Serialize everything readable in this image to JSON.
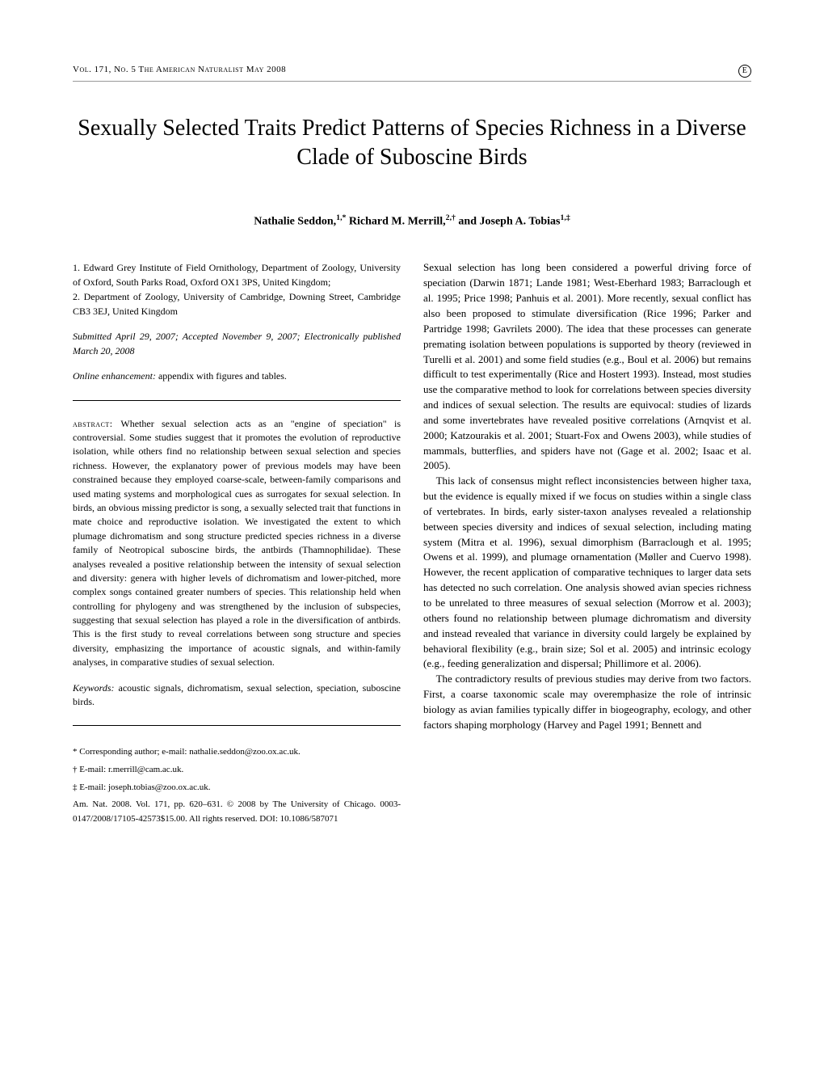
{
  "header": {
    "left": "Vol. 171, No. 5  The American Naturalist  May 2008",
    "badge": "E"
  },
  "title": "Sexually Selected Traits Predict Patterns of Species Richness in a Diverse Clade of Suboscine Birds",
  "authors_html": "Nathalie Seddon,<sup>1,*</sup> Richard M. Merrill,<sup>2,†</sup> and Joseph A. Tobias<sup>1,‡</sup>",
  "affiliations": {
    "a1": "1. Edward Grey Institute of Field Ornithology, Department of Zoology, University of Oxford, South Parks Road, Oxford OX1 3PS, United Kingdom;",
    "a2": "2. Department of Zoology, University of Cambridge, Downing Street, Cambridge CB3 3EJ, United Kingdom"
  },
  "submission": "Submitted April 29, 2007; Accepted November 9, 2007; Electronically published March 20, 2008",
  "enhancement_label": "Online enhancement:",
  "enhancement_text": " appendix with figures and tables.",
  "abstract_label": "abstract: ",
  "abstract_text": "Whether sexual selection acts as an \"engine of speciation\" is controversial. Some studies suggest that it promotes the evolution of reproductive isolation, while others find no relationship between sexual selection and species richness. However, the explanatory power of previous models may have been constrained because they employed coarse-scale, between-family comparisons and used mating systems and morphological cues as surrogates for sexual selection. In birds, an obvious missing predictor is song, a sexually selected trait that functions in mate choice and reproductive isolation. We investigated the extent to which plumage dichromatism and song structure predicted species richness in a diverse family of Neotropical suboscine birds, the antbirds (Thamnophilidae). These analyses revealed a positive relationship between the intensity of sexual selection and diversity: genera with higher levels of dichromatism and lower-pitched, more complex songs contained greater numbers of species. This relationship held when controlling for phylogeny and was strengthened by the inclusion of subspecies, suggesting that sexual selection has played a role in the diversification of antbirds. This is the first study to reveal correlations between song structure and species diversity, emphasizing the importance of acoustic signals, and within-family analyses, in comparative studies of sexual selection.",
  "keywords_label": "Keywords:",
  "keywords_text": " acoustic signals, dichromatism, sexual selection, speciation, suboscine birds.",
  "footnotes": {
    "f1": "* Corresponding author; e-mail: nathalie.seddon@zoo.ox.ac.uk.",
    "f2": "† E-mail: r.merrill@cam.ac.uk.",
    "f3": "‡ E-mail: joseph.tobias@zoo.ox.ac.uk.",
    "f4": "Am. Nat. 2008. Vol. 171, pp. 620–631. © 2008 by The University of Chicago. 0003-0147/2008/17105-42573$15.00. All rights reserved. DOI: 10.1086/587071"
  },
  "body": {
    "p1": "Sexual selection has long been considered a powerful driving force of speciation (Darwin 1871; Lande 1981; West-Eberhard 1983; Barraclough et al. 1995; Price 1998; Panhuis et al. 2001). More recently, sexual conflict has also been proposed to stimulate diversification (Rice 1996; Parker and Partridge 1998; Gavrilets 2000). The idea that these processes can generate premating isolation between populations is supported by theory (reviewed in Turelli et al. 2001) and some field studies (e.g., Boul et al. 2006) but remains difficult to test experimentally (Rice and Hostert 1993). Instead, most studies use the comparative method to look for correlations between species diversity and indices of sexual selection. The results are equivocal: studies of lizards and some invertebrates have revealed positive correlations (Arnqvist et al. 2000; Katzourakis et al. 2001; Stuart-Fox and Owens 2003), while studies of mammals, butterflies, and spiders have not (Gage et al. 2002; Isaac et al. 2005).",
    "p2": "This lack of consensus might reflect inconsistencies between higher taxa, but the evidence is equally mixed if we focus on studies within a single class of vertebrates. In birds, early sister-taxon analyses revealed a relationship between species diversity and indices of sexual selection, including mating system (Mitra et al. 1996), sexual dimorphism (Barraclough et al. 1995; Owens et al. 1999), and plumage ornamentation (Møller and Cuervo 1998). However, the recent application of comparative techniques to larger data sets has detected no such correlation. One analysis showed avian species richness to be unrelated to three measures of sexual selection (Morrow et al. 2003); others found no relationship between plumage dichromatism and diversity and instead revealed that variance in diversity could largely be explained by behavioral flexibility (e.g., brain size; Sol et al. 2005) and intrinsic ecology (e.g., feeding generalization and dispersal; Phillimore et al. 2006).",
    "p3": "The contradictory results of previous studies may derive from two factors. First, a coarse taxonomic scale may overemphasize the role of intrinsic biology as avian families typically differ in biogeography, ecology, and other factors shaping morphology (Harvey and Pagel 1991; Bennett and"
  }
}
